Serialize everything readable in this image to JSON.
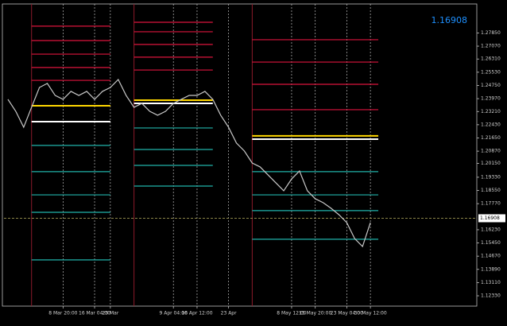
{
  "chart_data": {
    "type": "line",
    "current_price": {
      "value": 1.16908,
      "label": "1.16908",
      "color": "#1e90ff"
    },
    "categories": [
      null,
      null,
      null,
      null,
      null,
      null,
      null,
      "8 Mar 20:00",
      null,
      null,
      null,
      "16 Mar 04:00",
      null,
      "23 Mar",
      null,
      null,
      null,
      null,
      null,
      null,
      null,
      "9 Apr 04:00",
      null,
      null,
      "16 Apr 12:00",
      null,
      null,
      null,
      "23 Apr",
      null,
      null,
      null,
      null,
      null,
      null,
      null,
      "8 May 12:00",
      null,
      null,
      "15 May 20:00",
      null,
      null,
      null,
      "23 May 04:00",
      null,
      null,
      "30 May 12:00",
      null,
      null,
      null,
      null,
      null,
      null,
      null,
      null,
      null,
      null,
      null,
      null,
      null
    ],
    "series": [
      {
        "color": "#c8c8c8",
        "values": [
          1.2393,
          1.2322,
          1.2228,
          1.2346,
          1.2463,
          1.2487,
          1.2416,
          1.2393,
          1.244,
          1.2416,
          1.244,
          1.2393,
          1.244,
          1.2463,
          1.251,
          1.2416,
          1.2346,
          1.2369,
          1.2322,
          1.2299,
          1.2322,
          1.2369,
          1.2393,
          1.2416,
          1.2416,
          1.244,
          1.2393,
          1.2299,
          1.2228,
          1.2135,
          1.2088,
          1.2017,
          1.1994,
          1.1947,
          1.19,
          1.1853,
          1.1923,
          1.197,
          1.1853,
          1.1806,
          1.1783,
          1.175,
          1.1712,
          1.1665,
          1.1571,
          1.1524,
          1.1665,
          null,
          null,
          null,
          null,
          null,
          null,
          null,
          null,
          null,
          null,
          null,
          null,
          null
        ]
      }
    ],
    "ylim": [
      1.1172,
      1.2956
    ],
    "yticks": [
      {
        "value": 1.2785,
        "label": "1.27850"
      },
      {
        "value": 1.2707,
        "label": "1.27070"
      },
      {
        "value": 1.2631,
        "label": "1.26310"
      },
      {
        "value": 1.2553,
        "label": "1.25530"
      },
      {
        "value": 1.2475,
        "label": "1.24750"
      },
      {
        "value": 1.2397,
        "label": "1.23970"
      },
      {
        "value": 1.2321,
        "label": "1.23210"
      },
      {
        "value": 1.2243,
        "label": "1.22430"
      },
      {
        "value": 1.2165,
        "label": "1.21650"
      },
      {
        "value": 1.2087,
        "label": "1.20870"
      },
      {
        "value": 1.2015,
        "label": "1.20150"
      },
      {
        "value": 1.1933,
        "label": "1.19330"
      },
      {
        "value": 1.1855,
        "label": "1.18550"
      },
      {
        "value": 1.1777,
        "label": "1.17770"
      },
      {
        "value": 1.1623,
        "label": "1.16230"
      },
      {
        "value": 1.1545,
        "label": "1.15450"
      },
      {
        "value": 1.1467,
        "label": "1.14670"
      },
      {
        "value": 1.1389,
        "label": "1.13890"
      },
      {
        "value": 1.1311,
        "label": "1.13110"
      },
      {
        "value": 1.1233,
        "label": "1.12330"
      }
    ],
    "grid": true,
    "levels": [
      {
        "x_range": [
          3,
          13
        ],
        "lines": [
          {
            "value": 1.2825,
            "color": "#dc143c"
          },
          {
            "value": 1.274,
            "color": "#dc143c"
          },
          {
            "value": 1.266,
            "color": "#dc143c"
          },
          {
            "value": 1.2581,
            "color": "#dc143c"
          },
          {
            "value": 1.2505,
            "color": "#dc143c"
          },
          {
            "value": 1.2355,
            "color": "#ffd700"
          },
          {
            "value": 1.2261,
            "color": "#ffffff"
          },
          {
            "value": 1.2121,
            "color": "#20b2aa"
          },
          {
            "value": 1.1966,
            "color": "#20b2aa"
          },
          {
            "value": 1.1829,
            "color": "#20b2aa"
          },
          {
            "value": 1.1726,
            "color": "#20b2aa"
          },
          {
            "value": 1.1445,
            "color": "#20b2aa"
          }
        ]
      },
      {
        "x_range": [
          16,
          26
        ],
        "lines": [
          {
            "value": 1.2848,
            "color": "#dc143c"
          },
          {
            "value": 1.2792,
            "color": "#dc143c"
          },
          {
            "value": 1.2717,
            "color": "#dc143c"
          },
          {
            "value": 1.2642,
            "color": "#dc143c"
          },
          {
            "value": 1.2566,
            "color": "#dc143c"
          },
          {
            "value": 1.2388,
            "color": "#ffd700"
          },
          {
            "value": 1.2369,
            "color": "#ffffff"
          },
          {
            "value": 1.2224,
            "color": "#20b2aa"
          },
          {
            "value": 1.2097,
            "color": "#20b2aa"
          },
          {
            "value": 1.2003,
            "color": "#20b2aa"
          },
          {
            "value": 1.1881,
            "color": "#20b2aa"
          }
        ]
      },
      {
        "x_range": [
          31,
          47
        ],
        "lines": [
          {
            "value": 1.2745,
            "color": "#dc143c"
          },
          {
            "value": 1.2613,
            "color": "#dc143c"
          },
          {
            "value": 1.2482,
            "color": "#dc143c"
          },
          {
            "value": 1.2332,
            "color": "#dc143c"
          },
          {
            "value": 1.2177,
            "color": "#ffd700"
          },
          {
            "value": 1.2158,
            "color": "#ffffff"
          },
          {
            "value": 1.1966,
            "color": "#20b2aa"
          },
          {
            "value": 1.1829,
            "color": "#20b2aa"
          },
          {
            "value": 1.1736,
            "color": "#20b2aa"
          },
          {
            "value": 1.1567,
            "color": "#20b2aa"
          }
        ]
      }
    ]
  }
}
